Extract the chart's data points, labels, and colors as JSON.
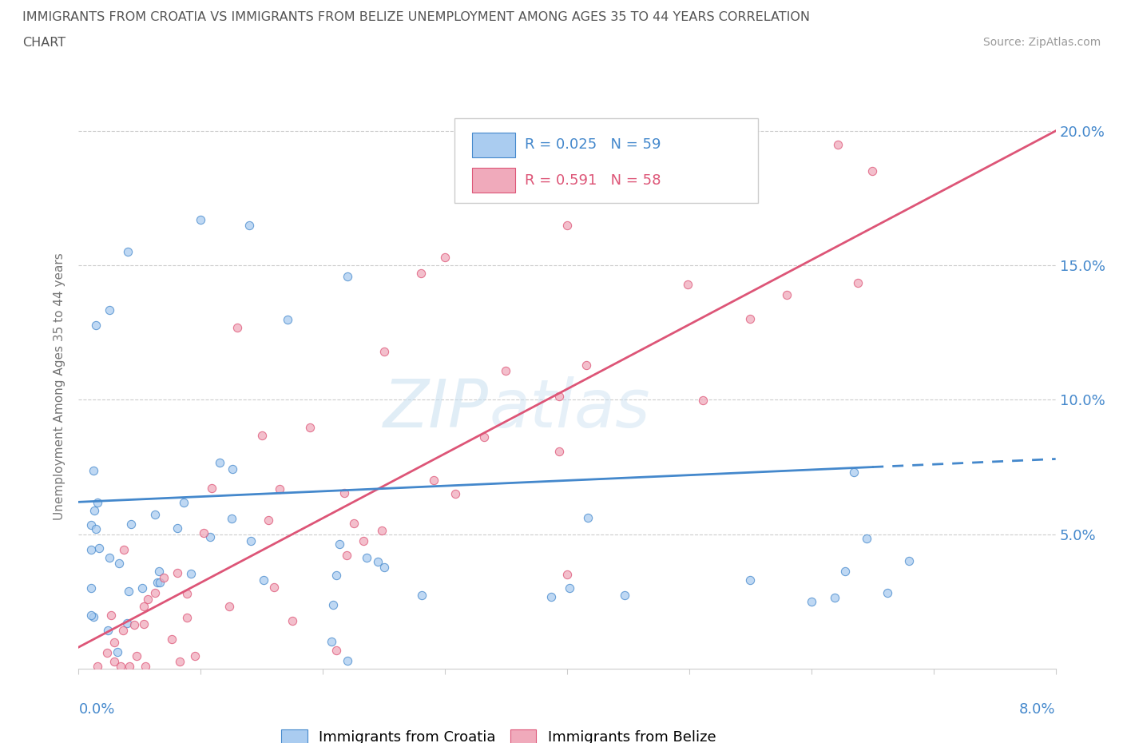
{
  "title_line1": "IMMIGRANTS FROM CROATIA VS IMMIGRANTS FROM BELIZE UNEMPLOYMENT AMONG AGES 35 TO 44 YEARS CORRELATION",
  "title_line2": "CHART",
  "source": "Source: ZipAtlas.com",
  "ylabel": "Unemployment Among Ages 35 to 44 years",
  "x_min": 0.0,
  "x_max": 0.08,
  "y_min": 0.0,
  "y_max": 0.21,
  "y_ticks": [
    0.05,
    0.1,
    0.15,
    0.2
  ],
  "y_tick_labels": [
    "5.0%",
    "10.0%",
    "15.0%",
    "20.0%"
  ],
  "croatia_color": "#aaccf0",
  "belize_color": "#f0aabb",
  "croatia_line_color": "#4488cc",
  "belize_line_color": "#dd5577",
  "croatia_R": 0.025,
  "croatia_N": 59,
  "belize_R": 0.591,
  "belize_N": 58,
  "watermark_ZIP": "ZIP",
  "watermark_atlas": "atlas",
  "legend_label_croatia": "Immigrants from Croatia",
  "legend_label_belize": "Immigrants from Belize"
}
